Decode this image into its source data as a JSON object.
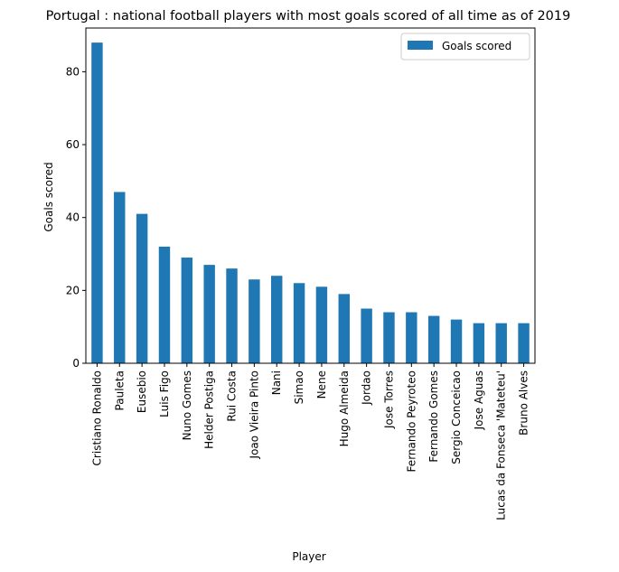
{
  "chart_data": {
    "type": "bar",
    "title": "Portugal : national football players with most goals scored of all time as of 2019",
    "xlabel": "Player",
    "ylabel": "Goals scored",
    "ylim": [
      0,
      92
    ],
    "yticks": [
      0,
      20,
      40,
      60,
      80
    ],
    "legend_position": "top-right",
    "grid": false,
    "bar_color": "#1f77b4",
    "categories": [
      "Cristiano Ronaldo",
      "Pauleta",
      "Eusebio",
      "Luis Figo",
      "Nuno Gomes",
      "Helder Postiga",
      "Rui Costa",
      "Joao Vieira Pinto",
      "Nani",
      "Simao",
      "Nene",
      "Hugo Almeida",
      "Jordao",
      "Jose Torres",
      "Fernando Peyroteo",
      "Fernando Gomes",
      "Sergio Conceicao",
      "Jose Aguas",
      "Lucas da Fonseca 'Mateteu'",
      "Bruno Alves"
    ],
    "series": [
      {
        "name": "Goals scored",
        "values": [
          88,
          47,
          41,
          32,
          29,
          27,
          26,
          23,
          24,
          22,
          21,
          19,
          15,
          14,
          14,
          13,
          12,
          11,
          11,
          11
        ]
      }
    ]
  }
}
